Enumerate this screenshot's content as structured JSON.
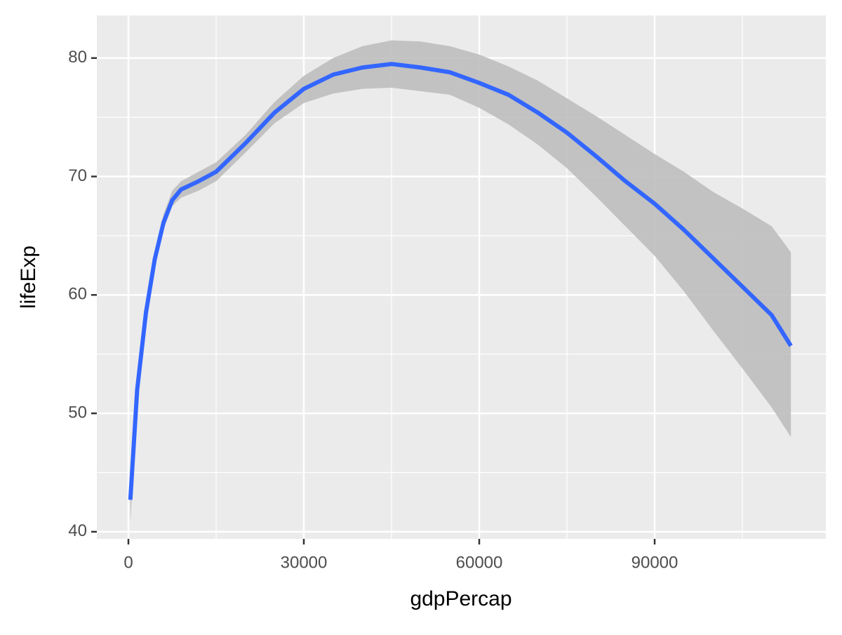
{
  "chart_data": {
    "type": "smooth",
    "x_label": "gdpPercap",
    "y_label": "lifeExp",
    "x": [
      330,
      1500,
      3000,
      4500,
      6000,
      7500,
      9000,
      12000,
      15000,
      20000,
      25000,
      30000,
      35000,
      40000,
      45000,
      50000,
      55000,
      60000,
      65000,
      70000,
      75000,
      80000,
      85000,
      90000,
      95000,
      100000,
      105000,
      110000,
      113300
    ],
    "y": [
      42.7,
      52.0,
      58.5,
      63.0,
      66.1,
      68.0,
      68.9,
      69.6,
      70.4,
      72.8,
      75.4,
      77.4,
      78.6,
      79.2,
      79.5,
      79.2,
      78.8,
      77.9,
      76.9,
      75.4,
      73.7,
      71.7,
      69.6,
      67.7,
      65.5,
      63.1,
      60.7,
      58.3,
      55.7
    ],
    "ymin": [
      40.7,
      51.0,
      57.8,
      62.4,
      65.5,
      67.5,
      68.2,
      68.8,
      69.6,
      72.0,
      74.5,
      76.2,
      77.0,
      77.4,
      77.5,
      77.2,
      76.9,
      75.8,
      74.4,
      72.7,
      70.7,
      68.3,
      65.8,
      63.3,
      60.3,
      57.0,
      53.8,
      50.5,
      48.0
    ],
    "ymax": [
      44.5,
      53.0,
      59.3,
      63.6,
      66.8,
      68.8,
      69.6,
      70.4,
      71.2,
      73.5,
      76.3,
      78.5,
      80.0,
      81.0,
      81.5,
      81.4,
      81.0,
      80.3,
      79.3,
      78.1,
      76.6,
      75.1,
      73.5,
      71.9,
      70.4,
      68.7,
      67.3,
      65.8,
      63.6
    ],
    "line_color": "#3366FF",
    "band_color": "#BEBEBE",
    "xlim": [
      -5400,
      119280
    ],
    "ylim": [
      39.4,
      83.6
    ],
    "xticks": [
      0,
      30000,
      60000,
      90000
    ],
    "yticks": [
      40,
      50,
      60,
      70,
      80
    ],
    "xminor": [
      15000,
      45000,
      75000,
      105000
    ],
    "yminor": [
      45,
      55,
      65,
      75
    ],
    "grid": true
  }
}
